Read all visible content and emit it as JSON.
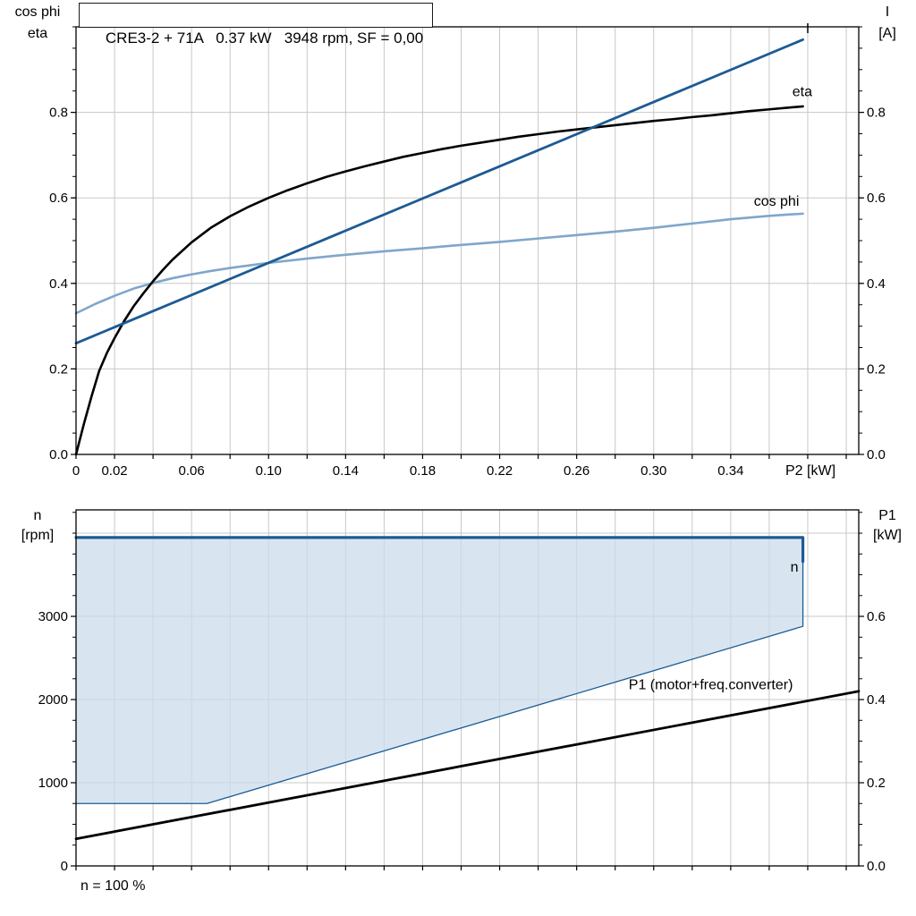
{
  "header": {
    "title": "CRE3-2 + 71A   0.37 kW   3948 rpm, SF = 0,00"
  },
  "footer": {
    "note": "n = 100 %"
  },
  "colors": {
    "dark_blue": "#1c5b94",
    "light_blue": "#7fa7ca",
    "region_fill": "#cbdcec",
    "grid": "#c8c8c8",
    "axis": "#000000"
  },
  "chart_data": [
    {
      "id": "motor-curves",
      "type": "line",
      "title": "CRE3-2 + 71A   0.37 kW   3948 rpm, SF = 0,00",
      "x_axis": {
        "label": "P2 [kW]",
        "range": [
          0,
          0.4065
        ],
        "tick_step": 0.02,
        "tick_max": 0.4,
        "tick_labels": [
          [
            "0",
            0
          ],
          [
            "0.02",
            0.02
          ],
          [
            "0.06",
            0.06
          ],
          [
            "0.10",
            0.1
          ],
          [
            "0.14",
            0.14
          ],
          [
            "0.18",
            0.18
          ],
          [
            "0.22",
            0.22
          ],
          [
            "0.26",
            0.26
          ],
          [
            "0.30",
            0.3
          ],
          [
            "0.34",
            0.34
          ]
        ]
      },
      "y_left": {
        "title_lines": [
          "cos phi",
          "eta"
        ],
        "range": [
          0,
          1.0
        ],
        "grid": [
          0.2,
          0.4,
          0.6,
          0.8
        ],
        "minor_step": 0.05,
        "tick_labels": [
          [
            "0.0",
            0
          ],
          [
            "0.2",
            0.2
          ],
          [
            "0.4",
            0.4
          ],
          [
            "0.6",
            0.6
          ],
          [
            "0.8",
            0.8
          ]
        ]
      },
      "y_right": {
        "title_lines": [
          "I",
          "[A]"
        ],
        "range": [
          0,
          1.0
        ],
        "minor_step": 0.05,
        "tick_labels": [
          [
            "0.0",
            0
          ],
          [
            "0.2",
            0.2
          ],
          [
            "0.4",
            0.4
          ],
          [
            "0.6",
            0.6
          ],
          [
            "0.8",
            0.8
          ]
        ]
      },
      "series": [
        {
          "name": "cos phi",
          "color_key": "light_blue",
          "width": 2.6,
          "y_axis": "left",
          "points": [
            [
              0,
              0.33
            ],
            [
              0.01,
              0.352
            ],
            [
              0.02,
              0.371
            ],
            [
              0.03,
              0.388
            ],
            [
              0.04,
              0.401
            ],
            [
              0.05,
              0.412
            ],
            [
              0.06,
              0.421
            ],
            [
              0.07,
              0.429
            ],
            [
              0.08,
              0.436
            ],
            [
              0.09,
              0.442
            ],
            [
              0.1,
              0.448
            ],
            [
              0.12,
              0.458
            ],
            [
              0.14,
              0.467
            ],
            [
              0.16,
              0.475
            ],
            [
              0.18,
              0.482
            ],
            [
              0.2,
              0.49
            ],
            [
              0.22,
              0.497
            ],
            [
              0.24,
              0.505
            ],
            [
              0.26,
              0.513
            ],
            [
              0.28,
              0.521
            ],
            [
              0.3,
              0.53
            ],
            [
              0.32,
              0.54
            ],
            [
              0.34,
              0.55
            ],
            [
              0.36,
              0.558
            ],
            [
              0.37,
              0.561
            ],
            [
              0.3775,
              0.563
            ]
          ]
        },
        {
          "name": "eta",
          "color_key": "axis",
          "width": 2.6,
          "y_axis": "left",
          "points": [
            [
              0,
              0
            ],
            [
              0.004,
              0.07
            ],
            [
              0.008,
              0.135
            ],
            [
              0.012,
              0.195
            ],
            [
              0.016,
              0.237
            ],
            [
              0.02,
              0.272
            ],
            [
              0.025,
              0.312
            ],
            [
              0.03,
              0.347
            ],
            [
              0.035,
              0.377
            ],
            [
              0.04,
              0.405
            ],
            [
              0.045,
              0.431
            ],
            [
              0.05,
              0.455
            ],
            [
              0.06,
              0.496
            ],
            [
              0.07,
              0.53
            ],
            [
              0.08,
              0.557
            ],
            [
              0.09,
              0.58
            ],
            [
              0.1,
              0.6
            ],
            [
              0.11,
              0.618
            ],
            [
              0.12,
              0.634
            ],
            [
              0.13,
              0.649
            ],
            [
              0.14,
              0.662
            ],
            [
              0.15,
              0.674
            ],
            [
              0.16,
              0.685
            ],
            [
              0.17,
              0.696
            ],
            [
              0.18,
              0.705
            ],
            [
              0.19,
              0.714
            ],
            [
              0.2,
              0.722
            ],
            [
              0.21,
              0.729
            ],
            [
              0.22,
              0.736
            ],
            [
              0.23,
              0.743
            ],
            [
              0.24,
              0.749
            ],
            [
              0.25,
              0.755
            ],
            [
              0.26,
              0.76
            ],
            [
              0.27,
              0.765
            ],
            [
              0.28,
              0.77
            ],
            [
              0.29,
              0.775
            ],
            [
              0.3,
              0.78
            ],
            [
              0.31,
              0.784
            ],
            [
              0.32,
              0.789
            ],
            [
              0.33,
              0.793
            ],
            [
              0.34,
              0.798
            ],
            [
              0.35,
              0.803
            ],
            [
              0.36,
              0.807
            ],
            [
              0.37,
              0.811
            ],
            [
              0.3775,
              0.814
            ]
          ]
        },
        {
          "name": "I",
          "color_key": "dark_blue",
          "width": 2.8,
          "y_axis": "left",
          "points": [
            [
              0,
              0.26
            ],
            [
              0.3775,
              0.97
            ]
          ]
        }
      ],
      "curve_labels": [
        {
          "text": "I",
          "x": 0.379,
          "y": 0.985,
          "color_key": "dark_blue",
          "axis": "left",
          "anchor": "start"
        },
        {
          "text": "eta",
          "x": 0.372,
          "y": 0.838,
          "color_key": "axis",
          "axis": "left",
          "anchor": "start"
        },
        {
          "text": "cos phi",
          "x": 0.352,
          "y": 0.582,
          "color_key": "light_blue",
          "axis": "left",
          "anchor": "start"
        }
      ]
    },
    {
      "id": "speed-power",
      "type": "line",
      "x_axis": {
        "label": "",
        "range": [
          0,
          0.4065
        ],
        "tick_step": 0.02,
        "tick_max": 0.4,
        "tick_labels": []
      },
      "y_left": {
        "title_lines": [
          "n",
          "[rpm]"
        ],
        "range": [
          0,
          4280
        ],
        "grid": [
          1000,
          2000,
          3000,
          4000
        ],
        "minor_step": 250,
        "tick_labels": [
          [
            "0",
            0
          ],
          [
            "1000",
            1000
          ],
          [
            "2000",
            2000
          ],
          [
            "3000",
            3000
          ]
        ]
      },
      "y_right": {
        "title_lines": [
          "P1",
          "[kW]"
        ],
        "range": [
          0,
          0.856
        ],
        "minor_step": 0.05,
        "tick_labels": [
          [
            "0.0",
            0
          ],
          [
            "0.2",
            0.2
          ],
          [
            "0.4",
            0.4
          ],
          [
            "0.6",
            0.6
          ]
        ]
      },
      "region": {
        "name": "speed-operating-envelope",
        "fill_key": "region_fill",
        "opacity": 0.75,
        "y_axis": "left",
        "points": [
          [
            0,
            3948
          ],
          [
            0.3775,
            3948
          ],
          [
            0.3775,
            2880
          ],
          [
            0.068,
            750
          ],
          [
            0,
            750
          ]
        ]
      },
      "series": [
        {
          "name": "n min boundary",
          "color_key": "dark_blue",
          "width": 1.3,
          "y_axis": "left",
          "points": [
            [
              0,
              750
            ],
            [
              0.068,
              750
            ],
            [
              0.3775,
              2880
            ],
            [
              0.3775,
              3948
            ]
          ]
        },
        {
          "name": "n",
          "color_key": "dark_blue",
          "width": 3.2,
          "y_axis": "left",
          "points": [
            [
              0,
              3948
            ],
            [
              0.3775,
              3948
            ],
            [
              0.3775,
              3660
            ]
          ]
        },
        {
          "name": "P1 (motor+freq.converter)",
          "color_key": "axis",
          "width": 2.8,
          "y_axis": "right",
          "points": [
            [
              0,
              0.065
            ],
            [
              0.4065,
              0.42
            ]
          ]
        }
      ],
      "curve_labels": [
        {
          "text": "n",
          "x": 0.371,
          "y": 3540,
          "color_key": "dark_blue",
          "axis": "left",
          "anchor": "start"
        },
        {
          "text": "P1 (motor+freq.converter)",
          "x": 0.287,
          "y": 0.425,
          "color_key": "axis",
          "axis": "right",
          "anchor": "start"
        }
      ]
    }
  ]
}
